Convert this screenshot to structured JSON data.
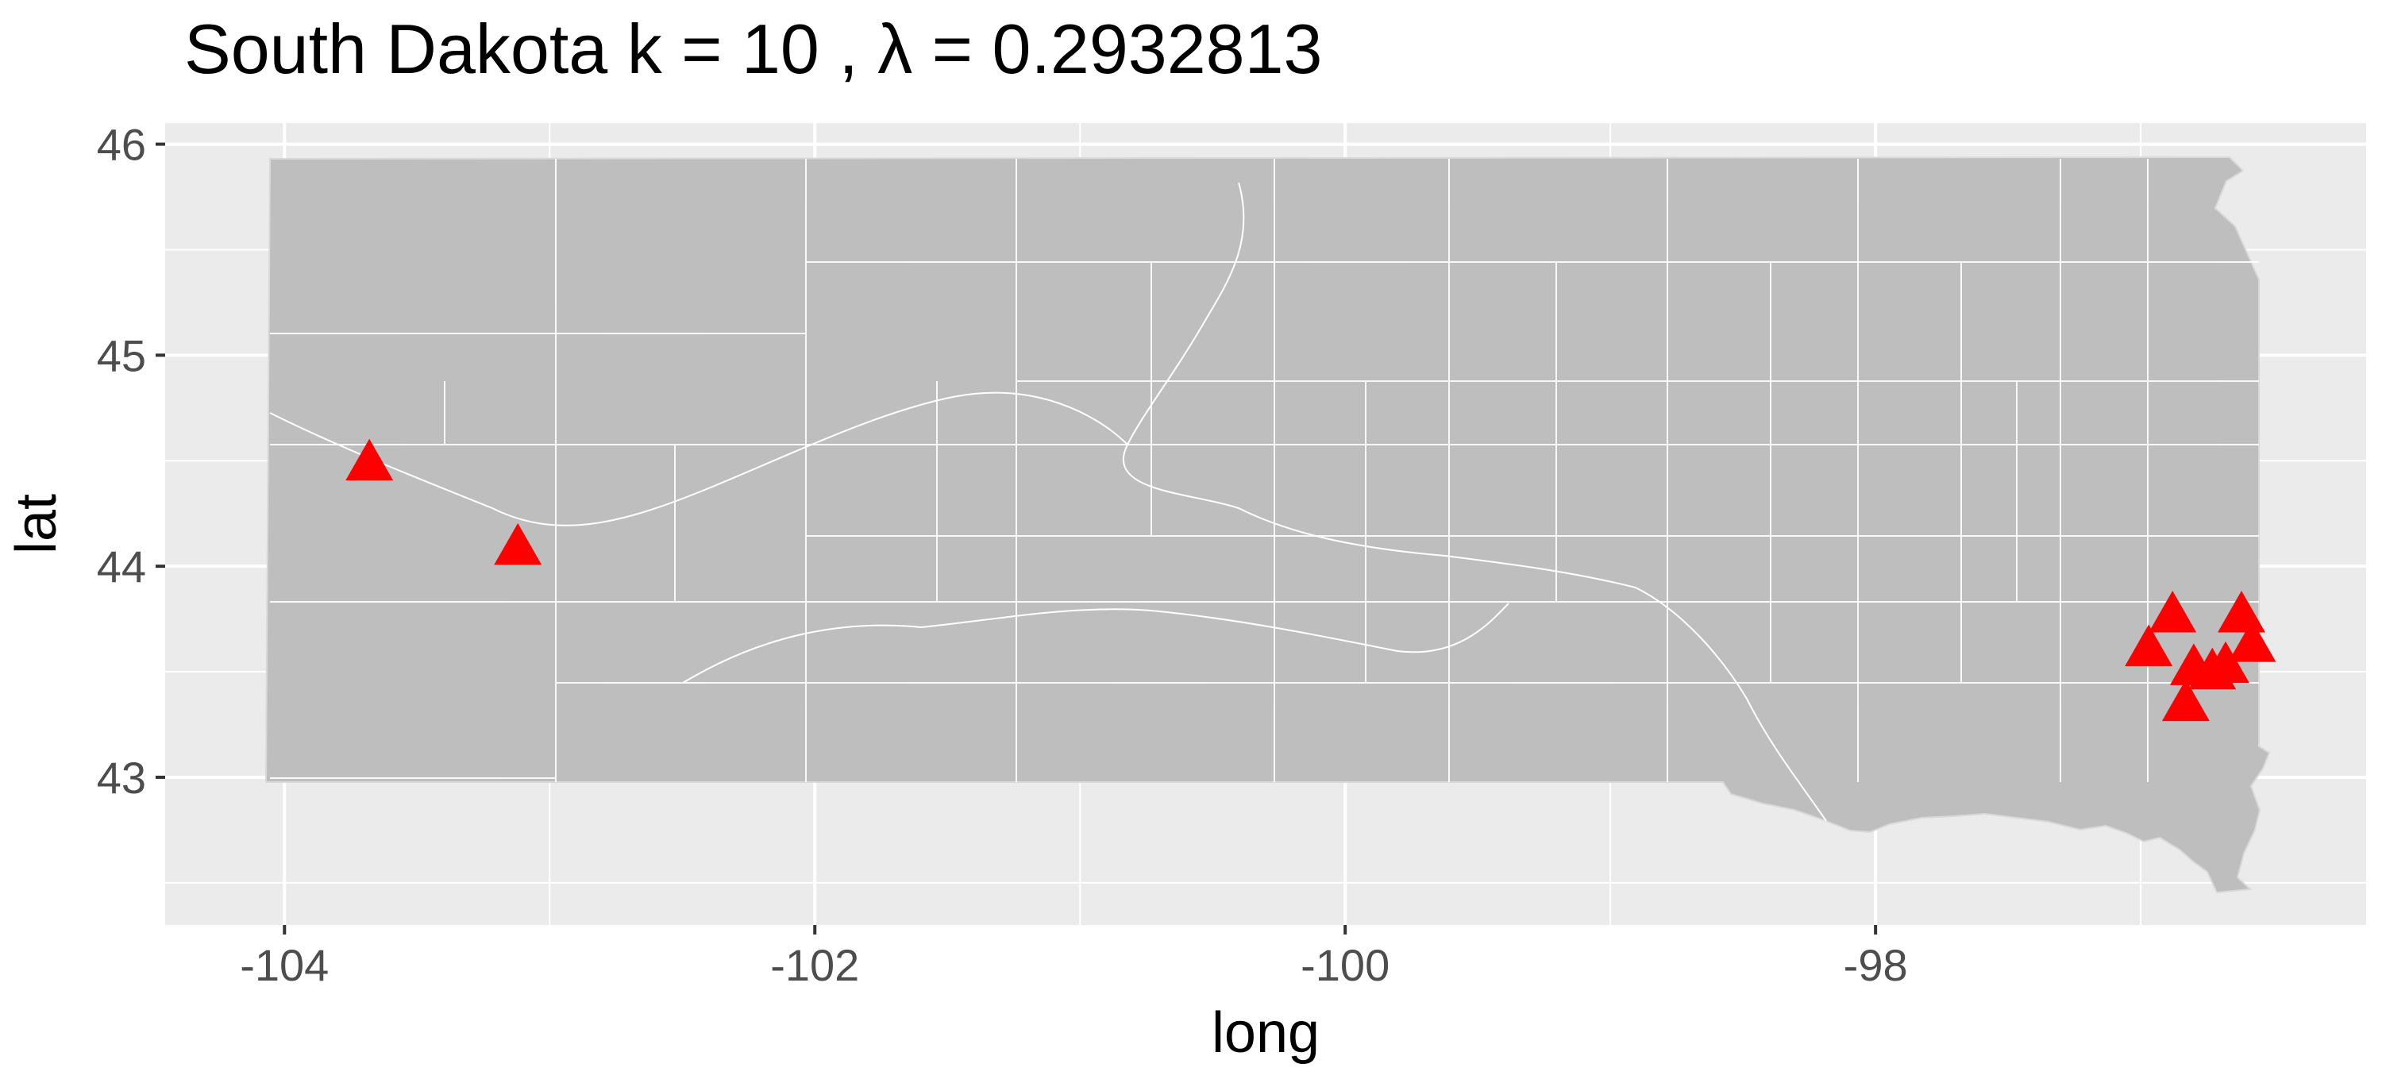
{
  "chart_data": {
    "type": "scatter",
    "title": "South Dakota  k =  10 ,  λ  =  0.2932813",
    "xlabel": "long",
    "ylabel": "lat",
    "xlim": [
      -104.45,
      -96.15
    ],
    "ylim": [
      42.3,
      46.1
    ],
    "x_ticks": [
      -104,
      -102,
      -100,
      -98
    ],
    "x_tick_labels": [
      "-104",
      "-102",
      "-100",
      "-98"
    ],
    "y_ticks": [
      43,
      44,
      45,
      46
    ],
    "y_tick_labels": [
      "43",
      "44",
      "45",
      "46"
    ],
    "grid": true,
    "panel_background": "#ebebeb",
    "state_fill": "#bebebe",
    "county_border": "#ffffff",
    "marker_color": "#ff0000",
    "marker_shape": "triangle",
    "series": [
      {
        "points": [
          {
            "x": -103.68,
            "y": 44.48
          },
          {
            "x": -103.12,
            "y": 44.08
          },
          {
            "x": -96.97,
            "y": 43.6
          },
          {
            "x": -96.88,
            "y": 43.76
          },
          {
            "x": -96.8,
            "y": 43.51
          },
          {
            "x": -96.73,
            "y": 43.49
          },
          {
            "x": -96.68,
            "y": 43.52
          },
          {
            "x": -96.62,
            "y": 43.76
          },
          {
            "x": -96.58,
            "y": 43.62
          },
          {
            "x": -96.83,
            "y": 43.34
          }
        ]
      }
    ]
  }
}
